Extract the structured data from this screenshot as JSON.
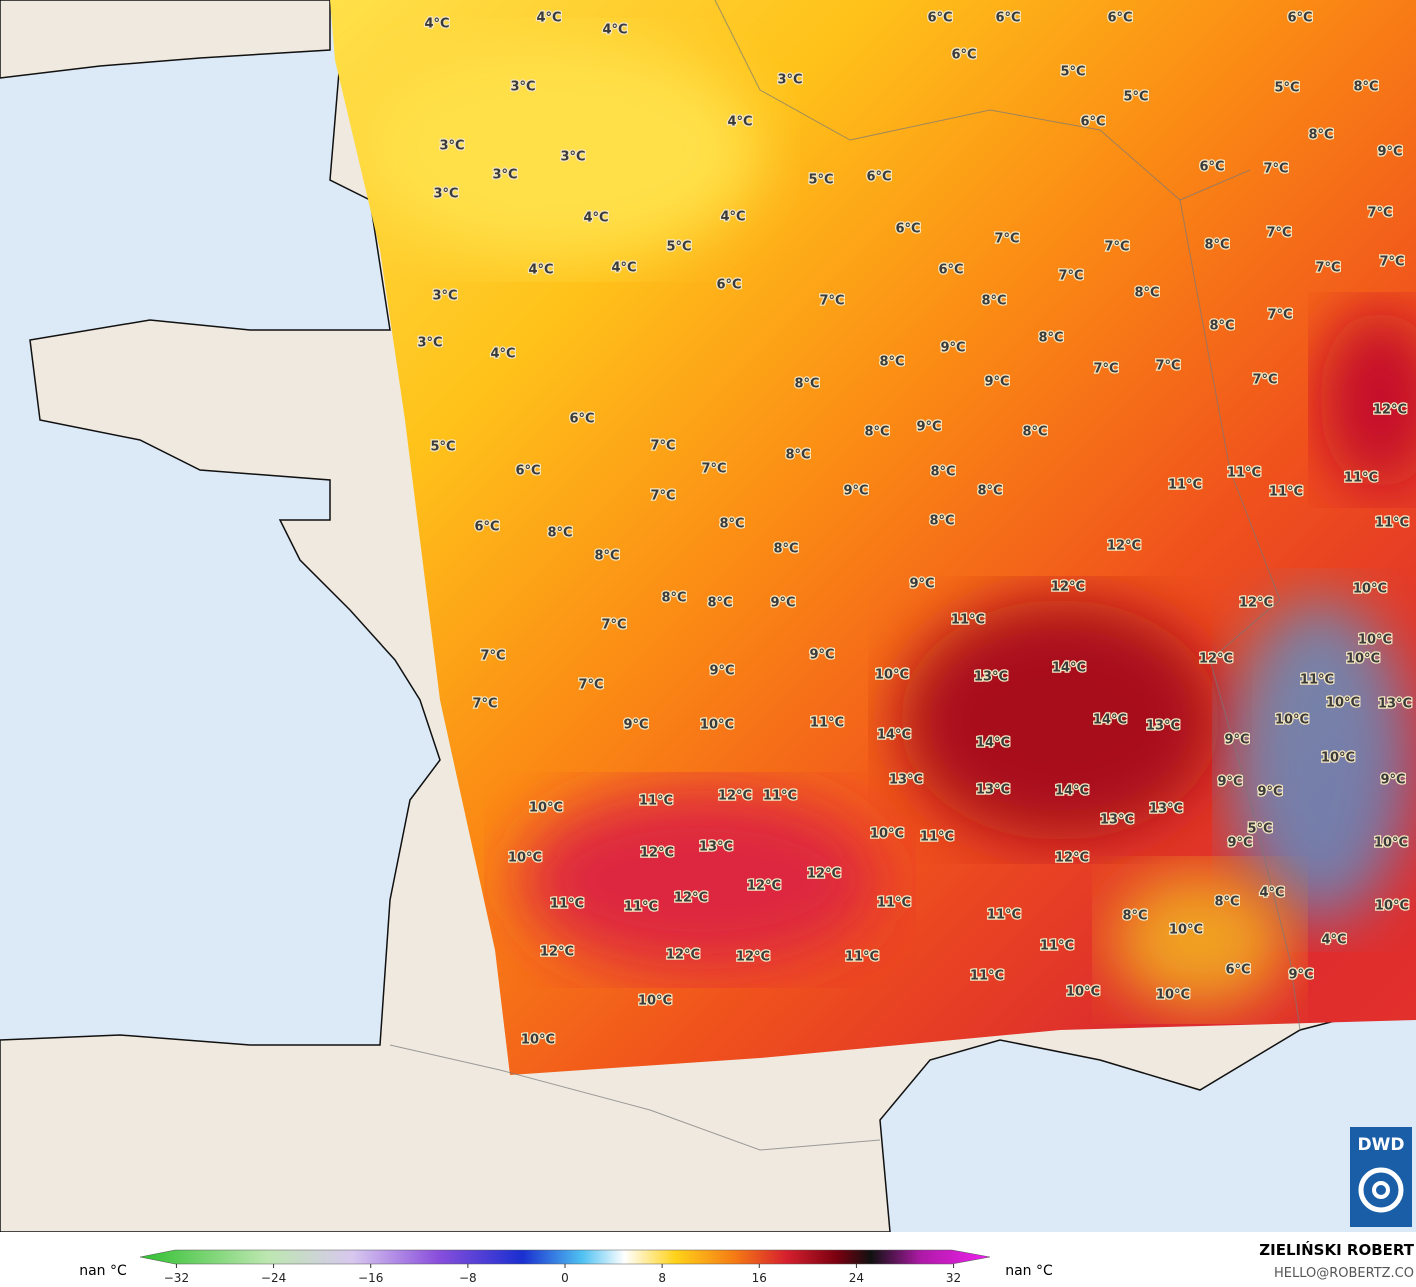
{
  "map": {
    "labels": [
      "4°C",
      "4°C",
      "4°C",
      "6°C",
      "6°C",
      "6°C",
      "6°C",
      "3°C",
      "3°C",
      "6°C",
      "5°C",
      "5°C",
      "5°C",
      "8°C",
      "4°C",
      "6°C",
      "8°C",
      "9°C",
      "3°C",
      "3°C",
      "3°C",
      "6°C",
      "7°C",
      "5°C",
      "6°C",
      "3°C",
      "4°C",
      "4°C",
      "7°C",
      "6°C",
      "7°C",
      "7°C",
      "8°C",
      "7°C",
      "5°C",
      "7°C",
      "7°C",
      "4°C",
      "4°C",
      "6°C",
      "7°C",
      "6°C",
      "8°C",
      "3°C",
      "7°C",
      "8°C",
      "7°C",
      "8°C",
      "8°C",
      "3°C",
      "4°C",
      "9°C",
      "8°C",
      "7°C",
      "7°C",
      "8°C",
      "9°C",
      "7°C",
      "12°C",
      "6°C",
      "9°C",
      "8°C",
      "8°C",
      "5°C",
      "7°C",
      "8°C",
      "7°C",
      "6°C",
      "8°C",
      "11°C",
      "11°C",
      "11°C",
      "11°C",
      "9°C",
      "8°C",
      "7°C",
      "6°C",
      "8°C",
      "8°C",
      "8°C",
      "11°C",
      "12°C",
      "8°C",
      "8°C",
      "9°C",
      "12°C",
      "10°C",
      "8°C",
      "8°C",
      "9°C",
      "12°C",
      "7°C",
      "11°C",
      "10°C",
      "7°C",
      "9°C",
      "12°C",
      "10°C",
      "14°C",
      "9°C",
      "10°C",
      "13°C",
      "11°C",
      "7°C",
      "10°C",
      "13°C",
      "7°C",
      "14°C",
      "13°C",
      "11°C",
      "10°C",
      "10°C",
      "9°C",
      "14°C",
      "14°C",
      "9°C",
      "10°C",
      "13°C",
      "9°C",
      "9°C",
      "13°C",
      "14°C",
      "9°C",
      "10°C",
      "11°C",
      "12°C",
      "11°C",
      "13°C",
      "13°C",
      "5°C",
      "10°C",
      "11°C",
      "13°C",
      "9°C",
      "10°C",
      "12°C",
      "10°C",
      "12°C",
      "12°C",
      "12°C",
      "4°C",
      "11°C",
      "12°C",
      "11°C",
      "11°C",
      "8°C",
      "10°C",
      "11°C",
      "8°C",
      "10°C",
      "4°C",
      "11°C",
      "12°C",
      "12°C",
      "12°C",
      "11°C",
      "6°C",
      "9°C",
      "11°C",
      "10°C",
      "10°C",
      "10°C",
      "10°C"
    ]
  },
  "legend": {
    "left_label": "nan °C",
    "right_label": "nan °C",
    "ticks": [
      {
        "value": -32,
        "label": "−32"
      },
      {
        "value": -24,
        "label": "−24"
      },
      {
        "value": -16,
        "label": "−16"
      },
      {
        "value": -8,
        "label": "−8"
      },
      0,
      8,
      16,
      24,
      32
    ],
    "lim": [
      -35,
      35
    ]
  },
  "credit": {
    "name": "ZIELIŃSKI ROBERT",
    "email": "HELLO@ROBERTZ.CO"
  },
  "logo": {
    "text": "DWD"
  }
}
